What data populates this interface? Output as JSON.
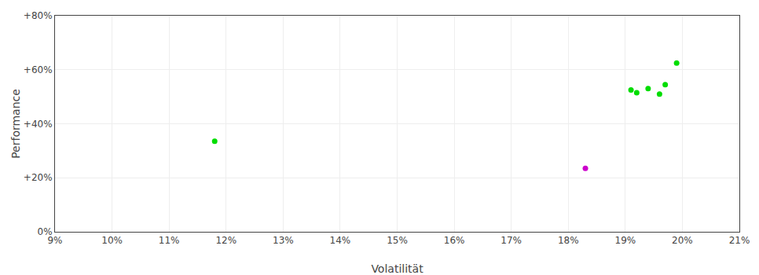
{
  "chart_data": {
    "type": "scatter",
    "xlabel": "Volatilität",
    "ylabel": "Performance",
    "series": [
      {
        "color": "#00dd00",
        "x": [
          0.118,
          0.191,
          0.192,
          0.194,
          0.196,
          0.197,
          0.199
        ],
        "values": [
          0.335,
          0.525,
          0.515,
          0.53,
          0.51,
          0.545,
          0.625
        ]
      },
      {
        "color": "#cc00cc",
        "x": [
          0.183
        ],
        "values": [
          0.235
        ]
      }
    ],
    "xlim": [
      0.09,
      0.21
    ],
    "ylim": [
      0.0,
      0.8
    ],
    "xticks": [
      {
        "value": 0.09,
        "label": "9%"
      },
      {
        "value": 0.1,
        "label": "10%"
      },
      {
        "value": 0.11,
        "label": "11%"
      },
      {
        "value": 0.12,
        "label": "12%"
      },
      {
        "value": 0.13,
        "label": "13%"
      },
      {
        "value": 0.14,
        "label": "14%"
      },
      {
        "value": 0.15,
        "label": "15%"
      },
      {
        "value": 0.16,
        "label": "16%"
      },
      {
        "value": 0.17,
        "label": "17%"
      },
      {
        "value": 0.18,
        "label": "18%"
      },
      {
        "value": 0.19,
        "label": "19%"
      },
      {
        "value": 0.2,
        "label": "20%"
      },
      {
        "value": 0.21,
        "label": "21%"
      }
    ],
    "yticks": [
      {
        "value": 0.0,
        "label": "0%"
      },
      {
        "value": 0.2,
        "label": "+20%"
      },
      {
        "value": 0.4,
        "label": "+40%"
      },
      {
        "value": 0.6,
        "label": "+60%"
      },
      {
        "value": 0.8,
        "label": "+80%"
      }
    ],
    "grid": true
  }
}
